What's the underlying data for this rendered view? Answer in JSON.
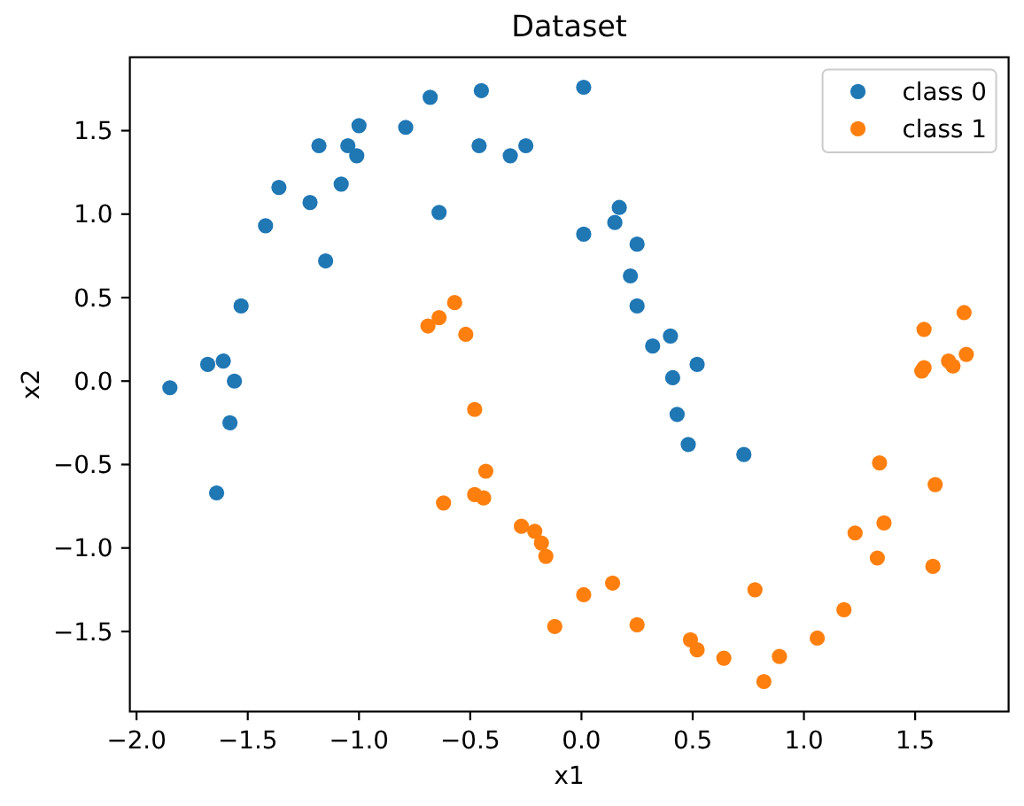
{
  "chart_data": {
    "type": "scatter",
    "title": "Dataset",
    "xlabel": "x1",
    "ylabel": "x2",
    "xlim": [
      -2.03,
      1.92
    ],
    "ylim": [
      -1.98,
      1.94
    ],
    "xticks": [
      {
        "value": -2,
        "label": "−2.0"
      },
      {
        "value": -1.5,
        "label": "−1.5"
      },
      {
        "value": -1,
        "label": "−1.0"
      },
      {
        "value": -0.5,
        "label": "−0.5"
      },
      {
        "value": 0,
        "label": "0.0"
      },
      0.5,
      {
        "value": 1,
        "label": "1.0"
      },
      1.5
    ],
    "yticks": [
      {
        "value": -1.5,
        "label": "−1.5"
      },
      {
        "value": -1,
        "label": "−1.0"
      },
      {
        "value": -0.5,
        "label": "−0.5"
      },
      {
        "value": 0,
        "label": "0.0"
      },
      0.5,
      {
        "value": 1,
        "label": "1.0"
      },
      1.5
    ],
    "legend": "top right",
    "marker": "circle",
    "series": [
      {
        "name": "class 0",
        "color": "#1f77b4",
        "x": [
          -1.85,
          -1.68,
          -1.64,
          -1.61,
          -1.58,
          -1.56,
          -1.53,
          -1.42,
          -1.36,
          -1.22,
          -1.18,
          -1.15,
          -1.08,
          -1.05,
          -1.01,
          -1.0,
          -0.79,
          -0.68,
          -0.64,
          -0.46,
          -0.45,
          -0.32,
          -0.25,
          0.01,
          0.01,
          0.15,
          0.17,
          0.22,
          0.25,
          0.25,
          0.32,
          0.4,
          0.41,
          0.43,
          0.48,
          0.52,
          0.73
        ],
        "values": [
          -0.04,
          0.1,
          -0.67,
          0.12,
          -0.25,
          0.0,
          0.45,
          0.93,
          1.16,
          1.07,
          1.41,
          0.72,
          1.18,
          1.41,
          1.35,
          1.53,
          1.52,
          1.7,
          1.01,
          1.41,
          1.74,
          1.35,
          1.41,
          1.76,
          0.88,
          0.95,
          1.04,
          0.63,
          0.82,
          0.45,
          0.21,
          0.27,
          0.02,
          -0.2,
          -0.38,
          0.1,
          -0.44
        ]
      },
      {
        "name": "class 1",
        "color": "#ff7f0e",
        "x": [
          -0.69,
          -0.64,
          -0.62,
          -0.57,
          -0.52,
          -0.48,
          -0.48,
          -0.44,
          -0.43,
          -0.27,
          -0.21,
          -0.18,
          -0.16,
          -0.12,
          0.01,
          0.14,
          0.25,
          0.49,
          0.52,
          0.64,
          0.78,
          0.82,
          0.89,
          1.06,
          1.18,
          1.23,
          1.33,
          1.34,
          1.36,
          1.58,
          1.59,
          1.53,
          1.54,
          1.54,
          1.65,
          1.67,
          1.72,
          1.73
        ],
        "values": [
          0.33,
          0.38,
          -0.73,
          0.47,
          0.28,
          -0.17,
          -0.68,
          -0.7,
          -0.54,
          -0.87,
          -0.9,
          -0.97,
          -1.05,
          -1.47,
          -1.28,
          -1.21,
          -1.46,
          -1.55,
          -1.61,
          -1.66,
          -1.25,
          -1.8,
          -1.65,
          -1.54,
          -1.37,
          -0.91,
          -1.06,
          -0.49,
          -0.85,
          -1.11,
          -0.62,
          0.06,
          0.08,
          0.31,
          0.12,
          0.09,
          0.41,
          0.16
        ]
      }
    ]
  }
}
